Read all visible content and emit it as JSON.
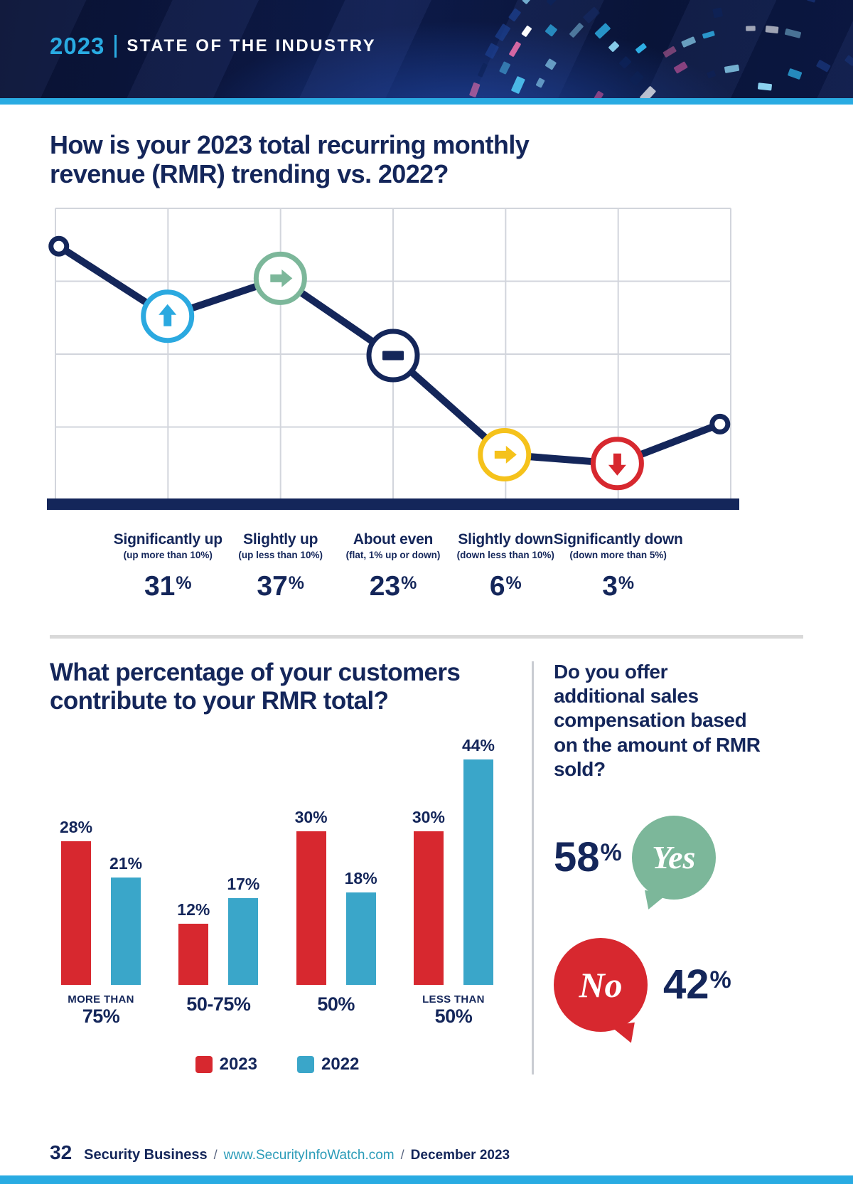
{
  "meta": {
    "colors": {
      "navy": "#14265a",
      "header_navy": "#0c173f",
      "cyan": "#29abe2",
      "red": "#d7282f",
      "green": "#7cb79a",
      "yellow": "#f5c21b",
      "bar_blue": "#3aa6c9",
      "grid": "#d2d5dc",
      "divider": "#d9d9d9",
      "url_teal": "#2a9bb8"
    }
  },
  "header": {
    "year": "2023",
    "title": "STATE OF THE INDUSTRY"
  },
  "questions": {
    "q1_title": "How is your 2023 total recurring monthly revenue (RMR) trending vs. 2022?",
    "q2_title": "What percentage of your customers contribute to your RMR total?",
    "q3_title": "Do you offer additional sales compensation based on the amount of RMR sold?"
  },
  "chart_data": [
    {
      "id": "rmr-trend",
      "type": "line",
      "title": "How is your 2023 total recurring monthly revenue (RMR) trending vs. 2022?",
      "categories": [
        "Significantly up",
        "Slightly up",
        "About even",
        "Slightly down",
        "Significantly down"
      ],
      "sublabels": [
        "(up more than 10%)",
        "(up less than 10%)",
        "(flat, 1% up or down)",
        "(down less than 10%)",
        "(down more than 5%)"
      ],
      "values": [
        31,
        37,
        23,
        6,
        3
      ],
      "unit": "%",
      "marker_icons": [
        "arrow-up-icon",
        "arrow-right-icon",
        "minus-icon",
        "arrow-right-icon",
        "arrow-down-icon"
      ],
      "marker_colors": [
        "#2ba9e0",
        "#7cb79a",
        "#14265a",
        "#f5c21b",
        "#d7282f"
      ],
      "grid": {
        "cols": 6,
        "rows": 4
      },
      "legend_position": "none",
      "trend_points_pct": [
        [
          0.5,
          13
        ],
        [
          16.6,
          37
        ],
        [
          33.3,
          24
        ],
        [
          50,
          50.5
        ],
        [
          66.5,
          84.5
        ],
        [
          83.2,
          87.5
        ],
        [
          98.4,
          74
        ]
      ]
    },
    {
      "id": "customers-rmr",
      "type": "bar",
      "title": "What percentage of your customers contribute to your RMR total?",
      "categories": [
        [
          "MORE THAN",
          "75%"
        ],
        [
          "50-75%"
        ],
        [
          "50%"
        ],
        [
          "LESS THAN",
          "50%"
        ]
      ],
      "series": [
        {
          "name": "2023",
          "color": "#d7282f",
          "values": [
            28,
            12,
            30,
            30
          ]
        },
        {
          "name": "2022",
          "color": "#3aa6c9",
          "values": [
            21,
            17,
            18,
            44
          ]
        }
      ],
      "unit": "%",
      "ylim": [
        0,
        44
      ],
      "legend_position": "bottom"
    },
    {
      "id": "rmr-compensation",
      "type": "pie",
      "title": "Do you offer additional sales compensation based on the amount of RMR sold?",
      "labels": [
        "Yes",
        "No"
      ],
      "values": [
        58,
        42
      ],
      "unit": "%",
      "colors": [
        "#7cb79a",
        "#d7282f"
      ]
    }
  ],
  "footer": {
    "page": "32",
    "brand": "Security Business",
    "sep1": "/",
    "url": "www.SecurityInfoWatch.com",
    "sep2": "/",
    "date": "December 2023"
  }
}
